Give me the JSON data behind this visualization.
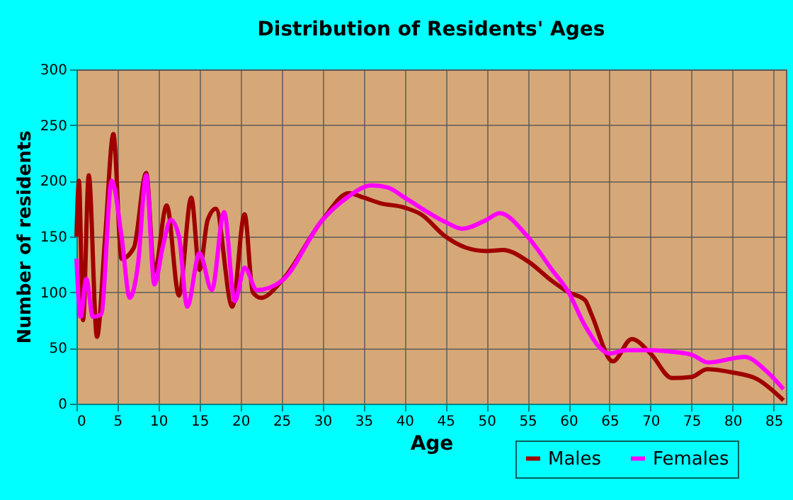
{
  "chart_data": {
    "type": "line",
    "title": "Distribution of Residents' Ages",
    "xlabel": "Age",
    "ylabel": "Number of residents",
    "xlim": [
      0,
      86.5
    ],
    "xticks": [
      0,
      5,
      10,
      15,
      20,
      25,
      30,
      35,
      40,
      45,
      50,
      55,
      60,
      65,
      70,
      75,
      80,
      85
    ],
    "ylim": [
      0,
      300
    ],
    "yticks": [
      0,
      50,
      100,
      150,
      200,
      250,
      300
    ],
    "grid": true,
    "legend": "bottom right",
    "marker": "none",
    "line_style": "solid",
    "series": [
      {
        "name": "Males",
        "color": "#a00000",
        "x": [
          0,
          0.3,
          0.8,
          1.5,
          2.5,
          3.5,
          4.5,
          5.5,
          7,
          8.5,
          9.5,
          11,
          12.5,
          14,
          15,
          16,
          17,
          19,
          20.5,
          21.5,
          22.5,
          25,
          30,
          33.2,
          35,
          37,
          40,
          42,
          45,
          47.5,
          50,
          52,
          55,
          58,
          60,
          62,
          62.8,
          65.4,
          67.7,
          70,
          72.6,
          75,
          76.9,
          80,
          83,
          86.2
        ],
        "values": [
          150,
          200,
          75,
          205,
          60,
          150,
          242,
          130,
          140,
          207,
          118,
          178,
          97,
          185,
          120,
          165,
          175,
          87,
          170,
          100,
          95,
          110,
          165,
          189,
          185,
          180,
          176,
          170,
          150,
          140,
          137,
          138,
          128,
          110,
          100,
          93,
          80,
          38,
          58,
          45,
          23,
          24,
          31,
          28,
          22,
          3
        ]
      },
      {
        "name": "Females",
        "color": "#ff00ff",
        "x": [
          0,
          0.5,
          1.2,
          2,
          3,
          4.3,
          5.5,
          6.5,
          7.5,
          8.5,
          9.5,
          10.5,
          11.5,
          12.5,
          13.5,
          15,
          16.5,
          18,
          19.3,
          20.5,
          22,
          25,
          30,
          33,
          36,
          38,
          40,
          45,
          47,
          50,
          51.6,
          55,
          58,
          60,
          62,
          65,
          67,
          70,
          72,
          75,
          77,
          81.5,
          84,
          86.2
        ],
        "values": [
          130,
          78,
          112,
          78,
          80,
          200,
          150,
          95,
          125,
          205,
          107,
          140,
          165,
          150,
          87,
          135,
          102,
          172,
          92,
          122,
          102,
          110,
          165,
          185,
          196,
          194,
          185,
          163,
          157,
          165,
          171,
          150,
          120,
          100,
          70,
          45,
          48,
          48,
          47,
          44,
          37,
          42,
          30,
          13
        ]
      }
    ]
  }
}
